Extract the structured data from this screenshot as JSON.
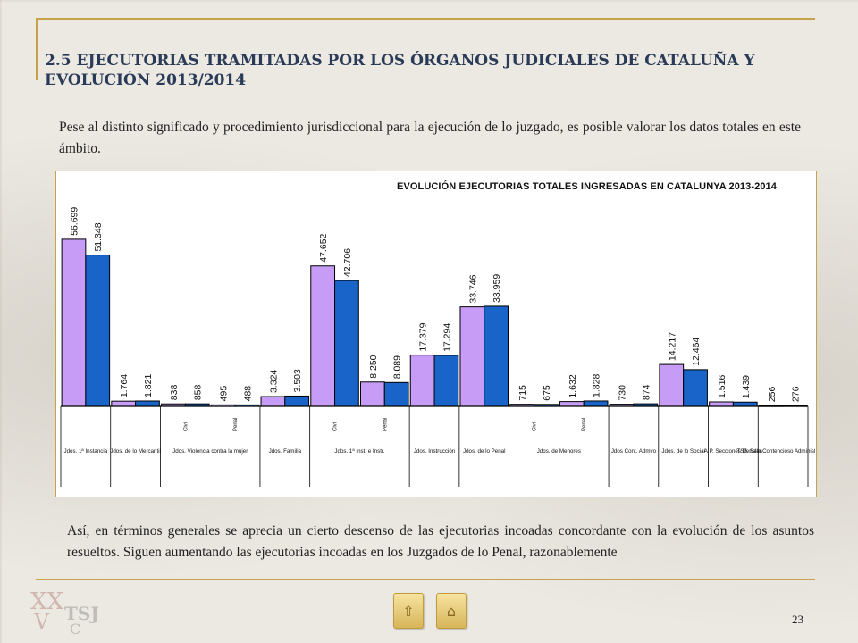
{
  "slide": {
    "title": "2.5 EJECUTORIAS TRAMITADAS POR LOS ÓRGANOS JUDICIALES DE CATALUÑA Y EVOLUCIÓN 2013/2014",
    "intro": "Pese al distinto significado y procedimiento jurisdiccional para la ejecución de lo juzgado, es posible valorar los datos totales en este ámbito.",
    "closing": "Así, en términos generales se aprecia un cierto descenso de las ejecutorias incoadas concordante con la evolución de los asuntos resueltos. Siguen aumentando las ejecutorias incoadas en los Juzgados de lo Penal, razonablemente",
    "page_number": "23",
    "logo_text": "TSJ C"
  },
  "nav": {
    "prev_icon": "up-arrow-icon",
    "home_icon": "home-icon"
  },
  "chart_data": {
    "type": "bar",
    "title": "EVOLUCIÓN EJECUTORIAS TOTALES INGRESADAS EN CATALUNYA 2013-2014",
    "colors": {
      "2013": "#c79cf6",
      "2014": "#1864c8"
    },
    "values_2013": [
      56699,
      1764,
      838,
      495,
      3324,
      47652,
      8250,
      17379,
      33746,
      715,
      1632,
      730,
      14217,
      1516,
      256
    ],
    "values_2014": [
      51348,
      1821,
      858,
      488,
      3503,
      42706,
      8089,
      17294,
      33959,
      675,
      1828,
      874,
      12464,
      1439,
      276
    ],
    "labels_2013": [
      "56.699",
      "1.764",
      "838",
      "495",
      "3.324",
      "47.652",
      "8.250",
      "17.379",
      "33.746",
      "715",
      "1.632",
      "730",
      "14.217",
      "1.516",
      "256"
    ],
    "labels_2014": [
      "51.348",
      "1.821",
      "858",
      "488",
      "3.503",
      "42.706",
      "8.089",
      "17.294",
      "33.959",
      "675",
      "1.828",
      "874",
      "12.464",
      "1.439",
      "276"
    ],
    "subcategories": [
      "",
      "",
      "Civil",
      "Penal",
      "",
      "Civil",
      "Penal",
      "",
      "",
      "Civil",
      "Penal",
      "",
      "",
      "",
      ""
    ],
    "groups": [
      {
        "label": "Jdos. 1ª Instancia",
        "span": [
          0,
          0
        ]
      },
      {
        "label": "Jdos. de lo Mercantil",
        "span": [
          1,
          1
        ]
      },
      {
        "label": "Jdos. Violencia contra la mujer",
        "span": [
          2,
          3
        ]
      },
      {
        "label": "Jdos. Familia",
        "span": [
          4,
          4
        ]
      },
      {
        "label": "Jdos. 1ª Inst. e Instr.",
        "span": [
          5,
          6
        ]
      },
      {
        "label": "Jdos. Instrucción",
        "span": [
          7,
          7
        ]
      },
      {
        "label": "Jdos. de lo Penal",
        "span": [
          8,
          8
        ]
      },
      {
        "label": "Jdos. de Menores",
        "span": [
          9,
          10
        ]
      },
      {
        "label": "Jdos Cont. Admvo",
        "span": [
          11,
          11
        ]
      },
      {
        "label": "Jdos. de lo Social",
        "span": [
          12,
          12
        ]
      },
      {
        "label": "A.P. Secciones Penales",
        "span": [
          13,
          13
        ]
      },
      {
        "label": "TSJ. Sala Contencioso Administrativo",
        "span": [
          14,
          14
        ]
      }
    ],
    "ylim": [
      0,
      60000
    ],
    "grid": false,
    "legend": "none"
  }
}
